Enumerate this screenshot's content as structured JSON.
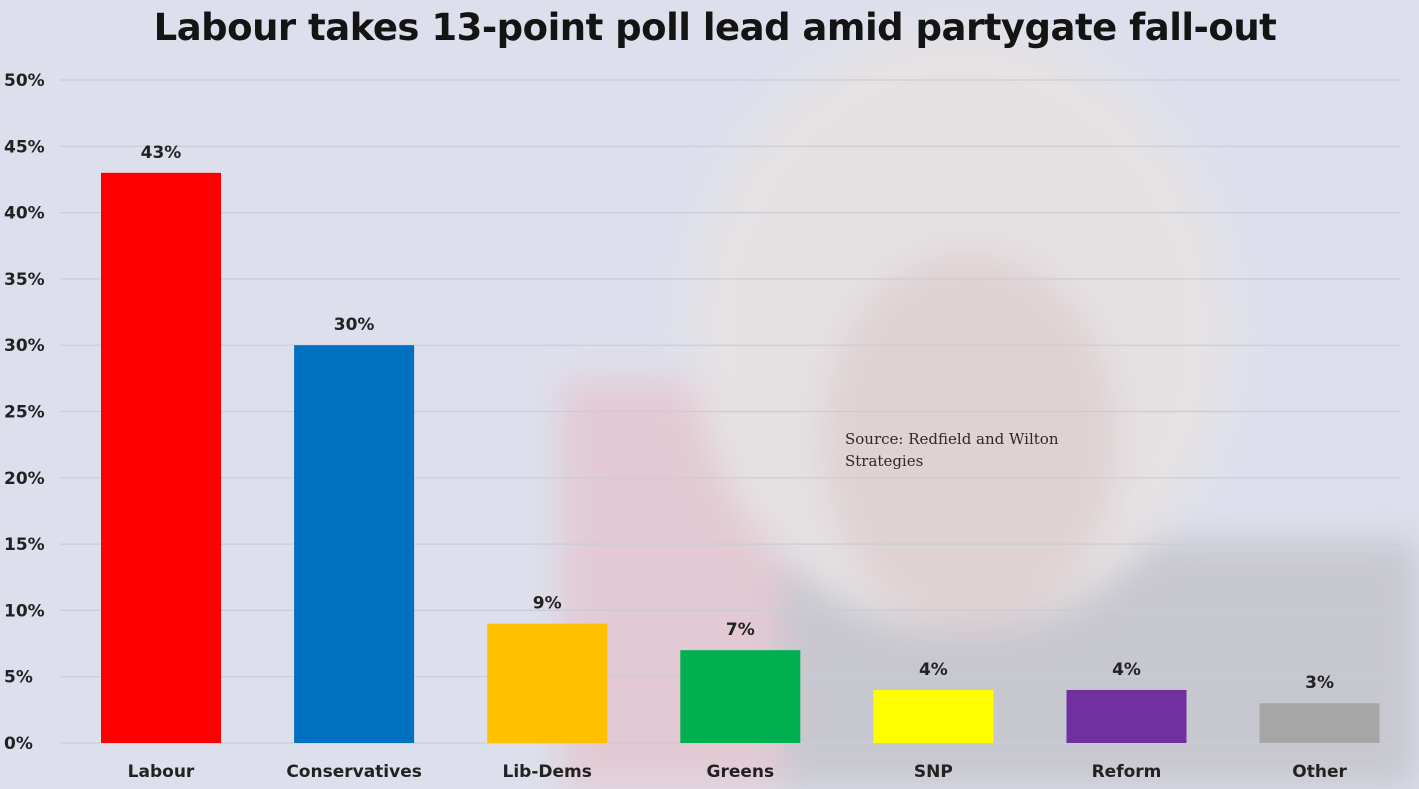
{
  "title": "Labour takes 13-point poll lead amid partygate fall-out",
  "source_note": "Source: Redfield and Wilton Strategies",
  "chart_data": {
    "type": "bar",
    "title": "Labour takes 13-point poll lead amid partygate fall-out",
    "xlabel": "",
    "ylabel": "",
    "ylim": [
      0,
      50
    ],
    "yticks": [
      0,
      5,
      10,
      15,
      20,
      25,
      30,
      35,
      40,
      45,
      50
    ],
    "ytick_labels": [
      "0%",
      "5%",
      "10%",
      "15%",
      "20%",
      "25%",
      "30%",
      "35%",
      "40%",
      "45%",
      "50%"
    ],
    "grid": true,
    "categories": [
      "Labour",
      "Conservatives",
      "Lib-Dems",
      "Greens",
      "SNP",
      "Reform",
      "Other"
    ],
    "values": [
      43,
      30,
      9,
      7,
      4,
      4,
      3
    ],
    "data_labels": [
      "43%",
      "30%",
      "9%",
      "7%",
      "4%",
      "4%",
      "3%"
    ],
    "colors": [
      "#ff0000",
      "#0070c0",
      "#ffc000",
      "#00b050",
      "#ffff00",
      "#7030a0",
      "#a6a6a6"
    ],
    "annotations": [
      "Source: Redfield and Wilton Strategies"
    ]
  }
}
